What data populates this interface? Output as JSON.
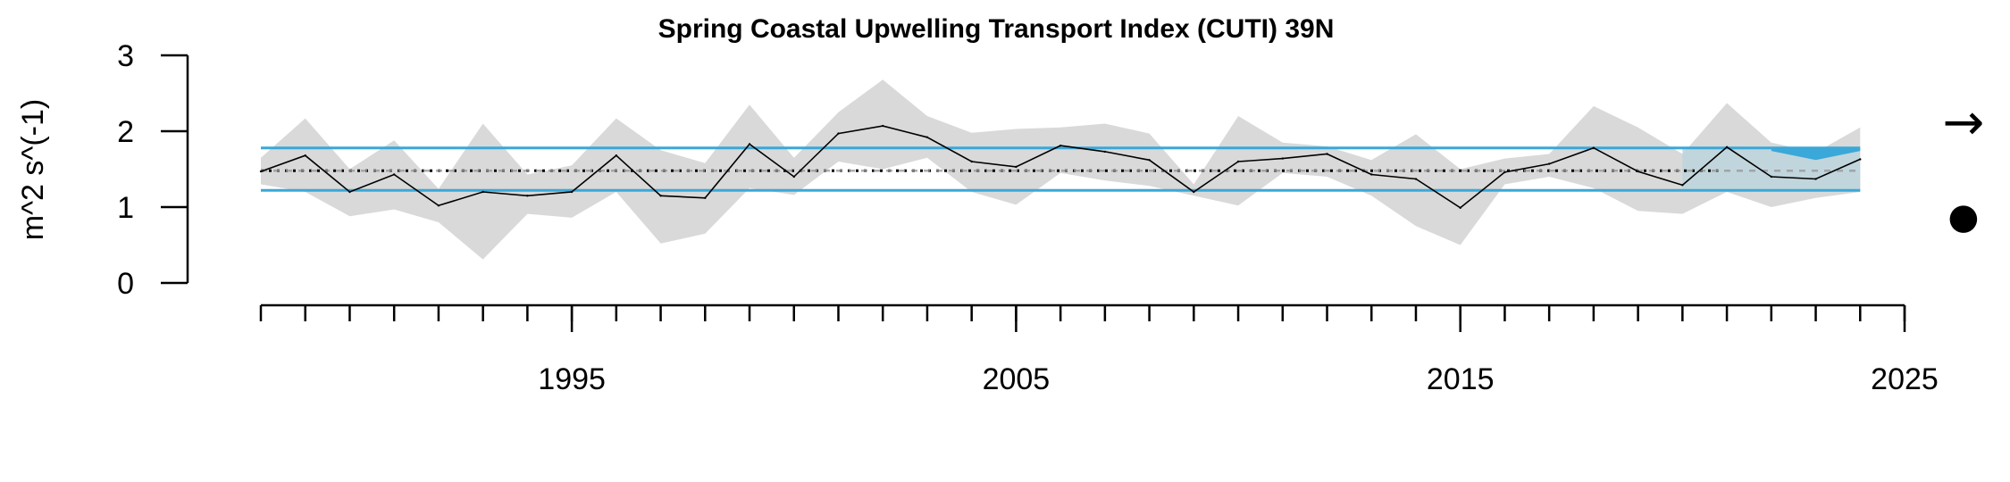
{
  "chart_data": {
    "type": "line",
    "title": "Spring Coastal Upwelling Transport Index (CUTI) 39N",
    "xlabel": "",
    "ylabel": "m^2 s^(-1)",
    "xlim": [
      1988,
      2025
    ],
    "ylim": [
      0,
      3
    ],
    "y_ticks": [
      "0",
      "1",
      "2",
      "3"
    ],
    "x_tick_labels": [
      "1995",
      "2005",
      "2015",
      "2025"
    ],
    "mean": 1.48,
    "sd_upper": 1.78,
    "sd_lower": 1.22,
    "recent_window": [
      2020,
      2024
    ],
    "recent_trend_symbol": "→",
    "recent_mean_symbol": "●",
    "colors": {
      "line": "#000000",
      "ci_band": "#d9d9d9",
      "sd_lines": "#3aa8d8",
      "recent_fill": "#bcd4dc",
      "recent_highlight": "#3aa8d8",
      "dashed_grey": "#999999"
    },
    "series": [
      {
        "x": [
          1988,
          1989,
          1990,
          1991,
          1992,
          1993,
          1994,
          1995,
          1996,
          1997,
          1998,
          1999,
          2000,
          2001,
          2002,
          2003,
          2004,
          2005,
          2006,
          2007,
          2008,
          2009,
          2010,
          2011,
          2012,
          2013,
          2014,
          2015,
          2016,
          2017,
          2018,
          2019,
          2020,
          2021,
          2022,
          2023,
          2024
        ],
        "y": [
          1.47,
          1.68,
          1.2,
          1.43,
          1.02,
          1.2,
          1.15,
          1.2,
          1.68,
          1.15,
          1.12,
          1.83,
          1.4,
          1.97,
          2.07,
          1.92,
          1.6,
          1.53,
          1.81,
          1.73,
          1.62,
          1.2,
          1.6,
          1.64,
          1.7,
          1.43,
          1.37,
          0.99,
          1.46,
          1.57,
          1.78,
          1.47,
          1.29,
          1.79,
          1.4,
          1.37,
          1.63
        ],
        "lower": [
          1.3,
          1.2,
          0.88,
          0.97,
          0.8,
          0.31,
          0.91,
          0.86,
          1.2,
          0.52,
          0.65,
          1.25,
          1.16,
          1.6,
          1.5,
          1.65,
          1.2,
          1.03,
          1.45,
          1.35,
          1.28,
          1.15,
          1.02,
          1.45,
          1.4,
          1.15,
          0.75,
          0.5,
          1.3,
          1.4,
          1.25,
          0.95,
          0.91,
          1.2,
          1.0,
          1.12,
          1.2
        ],
        "upper": [
          1.65,
          2.17,
          1.5,
          1.88,
          1.24,
          2.1,
          1.43,
          1.55,
          2.17,
          1.75,
          1.58,
          2.35,
          1.65,
          2.25,
          2.68,
          2.2,
          1.98,
          2.03,
          2.05,
          2.1,
          1.97,
          1.3,
          2.2,
          1.85,
          1.8,
          1.62,
          1.96,
          1.5,
          1.64,
          1.7,
          2.33,
          2.05,
          1.7,
          2.37,
          1.85,
          1.72,
          2.05
        ]
      }
    ]
  }
}
